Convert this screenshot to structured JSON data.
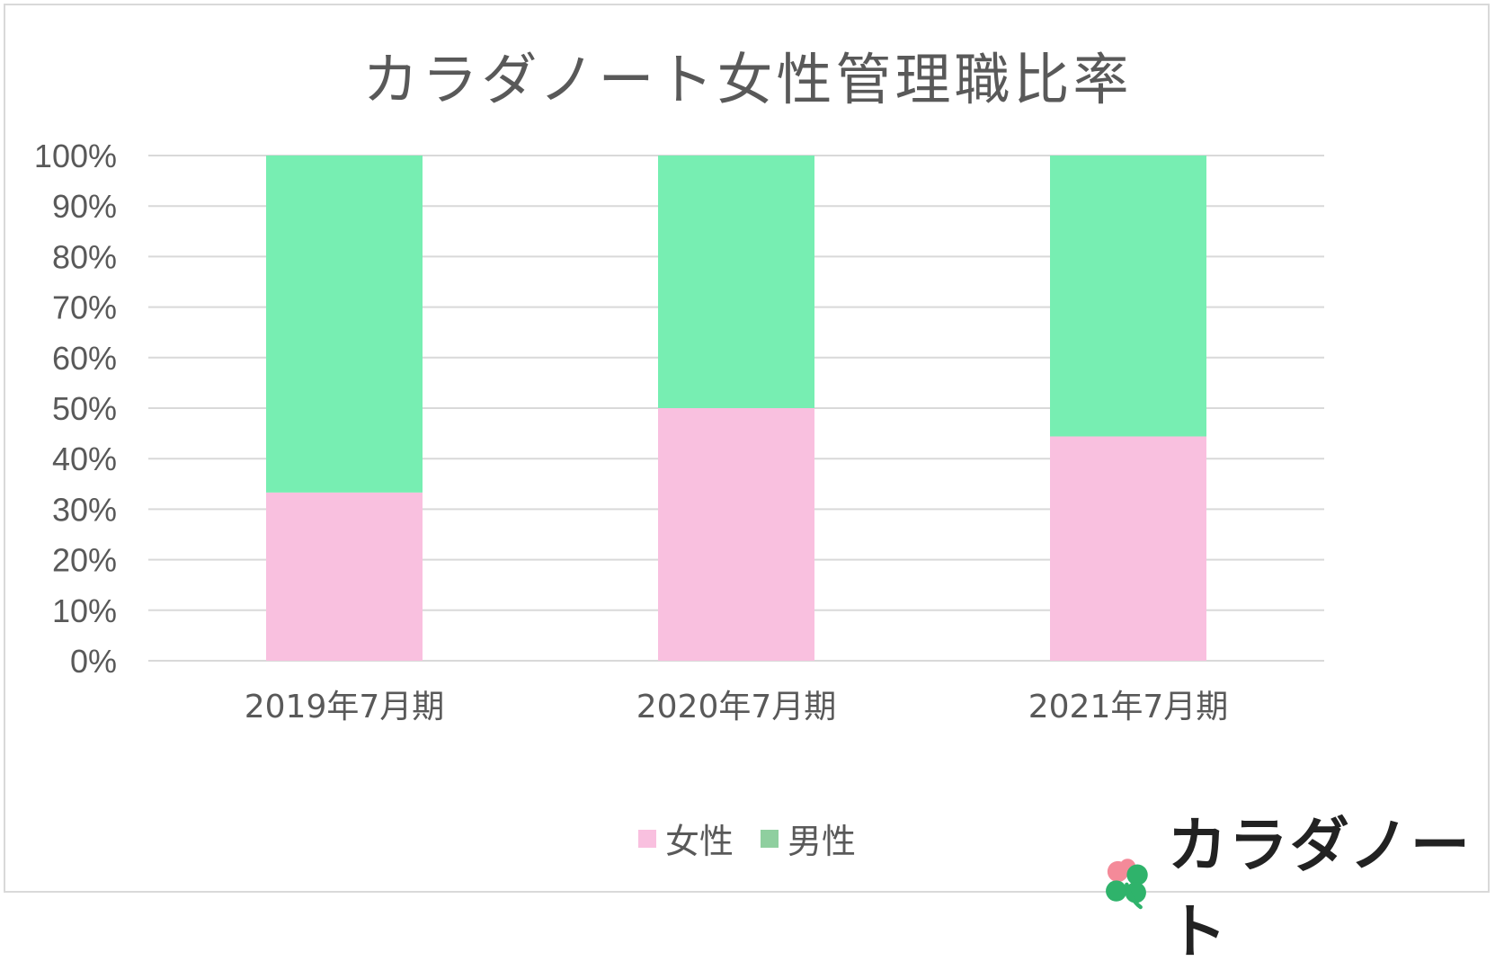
{
  "chart_data": {
    "type": "bar",
    "stacked": true,
    "title": "カラダノート女性管理職比率",
    "categories": [
      "2019年7月期",
      "2020年7月期",
      "2021年7月期"
    ],
    "series": [
      {
        "name": "女性",
        "values": [
          33.3,
          50.0,
          44.4
        ],
        "color": "#f9c0df"
      },
      {
        "name": "男性",
        "values": [
          66.7,
          50.0,
          55.6
        ],
        "color": "#77eeb2"
      }
    ],
    "ylim": [
      0,
      100
    ],
    "yticks": [
      "0%",
      "10%",
      "20%",
      "30%",
      "40%",
      "50%",
      "60%",
      "70%",
      "80%",
      "90%",
      "100%"
    ],
    "grid": true,
    "legend_position": "bottom"
  },
  "legend": {
    "items": [
      {
        "label": "女性",
        "color": "#f9c0df"
      },
      {
        "label": "男性",
        "color": "#8fcf9f"
      }
    ]
  },
  "brand": {
    "name": "カラダノート",
    "logo_icon": "clover-icon"
  },
  "colors": {
    "grid": "#d9d9d9",
    "text": "#595959"
  }
}
